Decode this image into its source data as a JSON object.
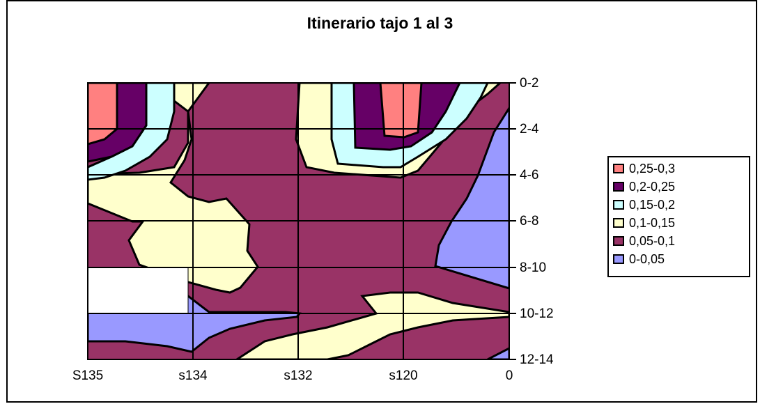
{
  "chart_data": {
    "type": "contour",
    "title": "Itinerario tajo 1 al 3",
    "x_categories": [
      "S135",
      "s134",
      "s132",
      "s120",
      "0"
    ],
    "y_categories": [
      "0-2",
      "2-4",
      "4-6",
      "6-8",
      "8-10",
      "10-12",
      "12-14"
    ],
    "legend_position": "right",
    "grid": true,
    "bands": [
      {
        "name": "0,25-0,3",
        "range": [
          0.25,
          0.3
        ],
        "color": "#ff8080"
      },
      {
        "name": "0,2-0,25",
        "range": [
          0.2,
          0.25
        ],
        "color": "#660066"
      },
      {
        "name": "0,15-0,2",
        "range": [
          0.15,
          0.2
        ],
        "color": "#ccffff"
      },
      {
        "name": "0,1-0,15",
        "range": [
          0.1,
          0.15
        ],
        "color": "#ffffcc"
      },
      {
        "name": "0,05-0,1",
        "range": [
          0.05,
          0.1
        ],
        "color": "#993366"
      },
      {
        "name": "0-0,05",
        "range": [
          0.0,
          0.05
        ],
        "color": "#9999ff"
      }
    ]
  }
}
